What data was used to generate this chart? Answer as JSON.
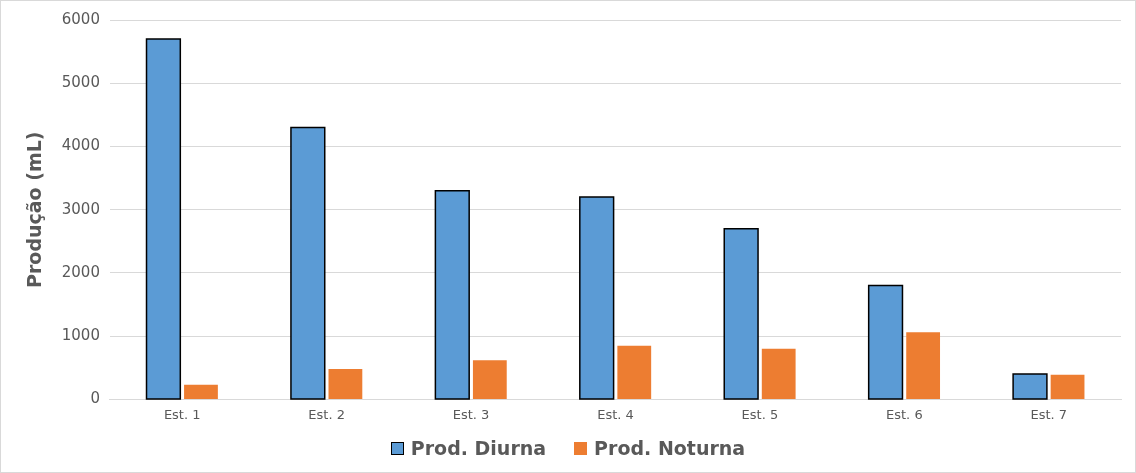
{
  "chart_data": {
    "type": "bar",
    "ylabel": "Produção (mL)",
    "categories": [
      "Est. 1",
      "Est. 2",
      "Est. 3",
      "Est. 4",
      "Est. 5",
      "Est. 6",
      "Est. 7"
    ],
    "series": [
      {
        "name": "Prod. Diurna",
        "color": "#5b9bd5",
        "values": [
          5700,
          4300,
          3300,
          3200,
          2700,
          1800,
          400
        ]
      },
      {
        "name": "Prod. Noturna",
        "color": "#ed7d31",
        "values": [
          230,
          480,
          620,
          850,
          800,
          1060,
          390
        ]
      }
    ],
    "ylim": [
      0,
      6000
    ],
    "yticks": [
      0,
      1000,
      2000,
      3000,
      4000,
      5000,
      6000
    ],
    "grid": "y",
    "legend": "bottom"
  }
}
